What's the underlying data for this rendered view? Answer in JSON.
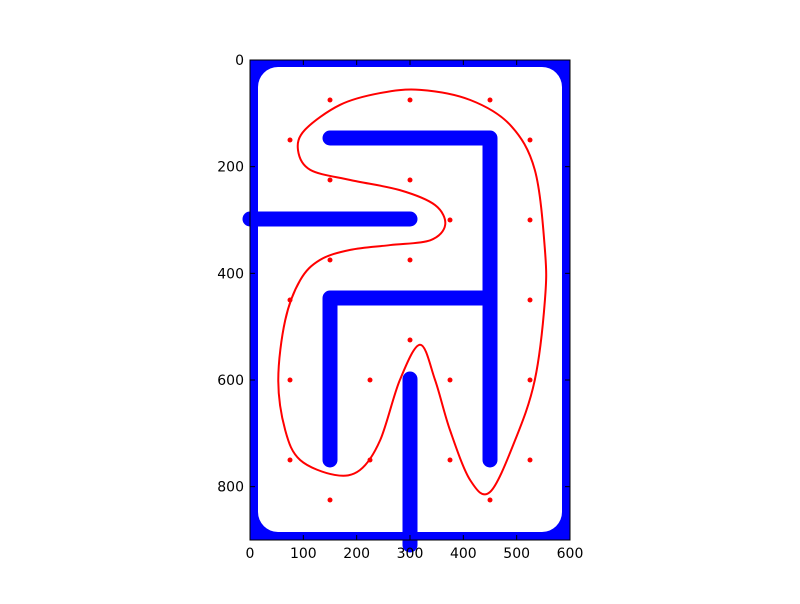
{
  "chart_data": {
    "type": "scatter",
    "xlim": [
      0,
      600
    ],
    "ylim": [
      900,
      0
    ],
    "xticks": [
      0,
      100,
      200,
      300,
      400,
      500,
      600
    ],
    "yticks": [
      0,
      200,
      400,
      600,
      800
    ],
    "points": {
      "color": "#ff0000",
      "x": [
        150,
        300,
        450,
        75,
        525,
        150,
        300,
        375,
        525,
        150,
        300,
        75,
        525,
        300,
        75,
        225,
        375,
        525,
        75,
        225,
        375,
        525,
        150,
        450
      ],
      "y": [
        75,
        75,
        75,
        150,
        150,
        225,
        225,
        300,
        300,
        375,
        375,
        450,
        450,
        525,
        600,
        600,
        600,
        600,
        750,
        750,
        750,
        750,
        825,
        825
      ]
    },
    "curve": {
      "color": "#ff0000",
      "x": [
        319,
        413,
        488,
        534,
        553,
        553,
        534,
        497,
        450,
        413,
        375,
        347,
        319,
        281,
        244,
        206,
        159,
        94,
        66,
        53,
        66,
        94,
        131,
        188,
        263,
        338,
        366,
        347,
        281,
        188,
        113,
        90,
        103,
        169,
        244
      ],
      "y": [
        56,
        75,
        122,
        206,
        356,
        450,
        600,
        713,
        810,
        788,
        694,
        600,
        534,
        600,
        713,
        769,
        778,
        750,
        694,
        600,
        488,
        413,
        375,
        356,
        347,
        338,
        309,
        272,
        244,
        225,
        206,
        169,
        131,
        84,
        62
      ]
    }
  }
}
